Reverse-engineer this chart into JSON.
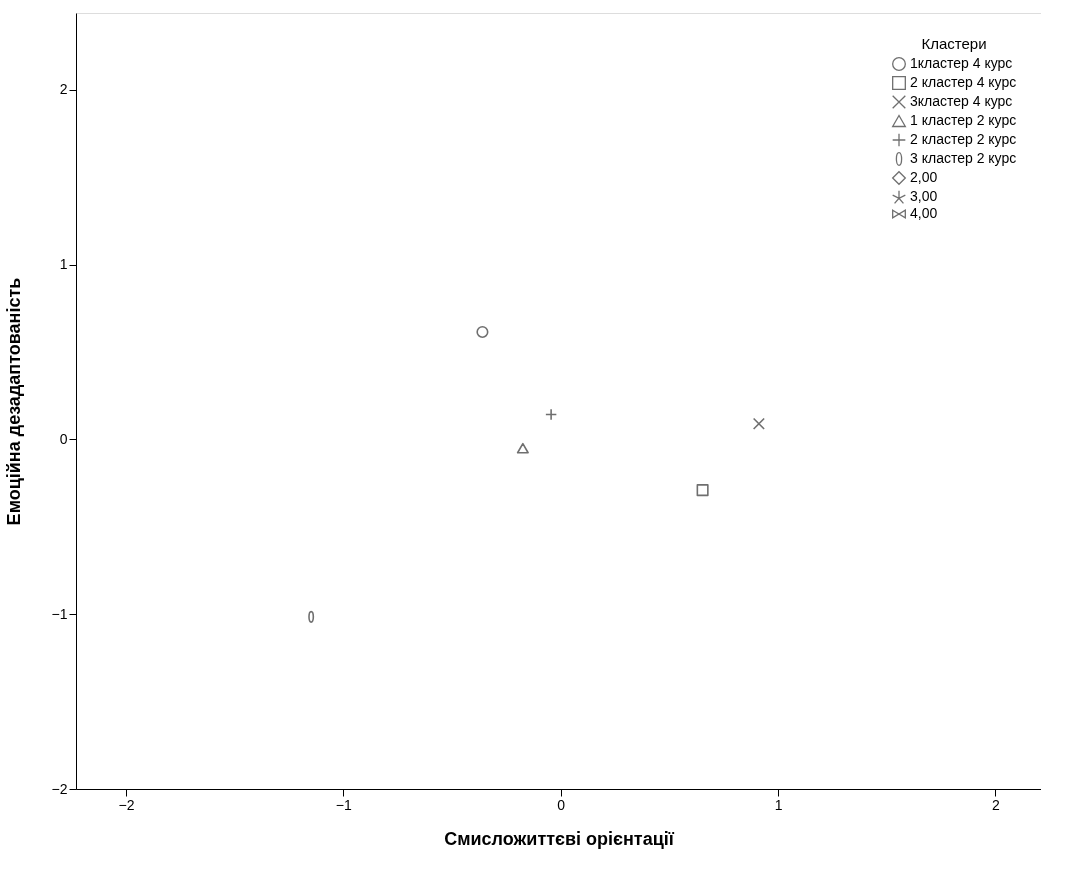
{
  "chart_data": {
    "type": "scatter",
    "xlabel": "Смисложиттєві орієнтації",
    "ylabel": "Емоційна дезадаптованість",
    "legend_title": "Кластери",
    "xlim": [
      -2.23,
      2.21
    ],
    "ylim": [
      -2,
      2.44
    ],
    "xticks": [
      -2,
      -1,
      0,
      1,
      2
    ],
    "yticks": [
      -2,
      -1,
      0,
      1,
      2
    ],
    "grid": false,
    "legend": "top right",
    "series": [
      {
        "name": "1кластер 4 курс",
        "color": "#333333",
        "marker": "circle",
        "x": [
          -0.36
        ],
        "values": [
          0.615
        ]
      },
      {
        "name": "2 кластер 4 курс",
        "color": "#333333",
        "marker": "square",
        "x": [
          0.653
        ],
        "values": [
          -0.29
        ]
      },
      {
        "name": "3кластер 4 курс",
        "color": "#333333",
        "marker": "cross",
        "x": [
          0.912
        ],
        "values": [
          0.09
        ]
      },
      {
        "name": "1 кластер 2 курс",
        "color": "#333333",
        "marker": "triangle",
        "x": [
          -0.174
        ],
        "values": [
          -0.05
        ]
      },
      {
        "name": "2 кластер 2 курс",
        "color": "#333333",
        "marker": "plus",
        "x": [
          -0.044
        ],
        "values": [
          0.143
        ]
      },
      {
        "name": "3 кластер 2 курс",
        "color": "#333333",
        "x": [
          -1.148
        ],
        "values": [
          -1.015
        ]
      },
      {
        "name": "2,00",
        "color": "#333333",
        "marker": "diamond"
      },
      {
        "name": "3,00",
        "color": "#333333",
        "marker": "star"
      },
      {
        "name": "4,00",
        "color": "#333333",
        "marker": "bowtie"
      }
    ]
  }
}
